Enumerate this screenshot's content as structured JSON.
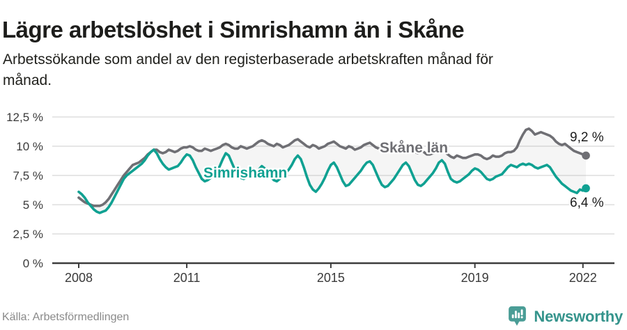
{
  "title": "Lägre arbetslöshet i Simrishamn än i Skåne",
  "subtitle": {
    "line1": "Arbetssökande som andel av den registerbaserade arbetskraften månad för",
    "line2": "månad."
  },
  "source": "Källa: Arbetsförmedlingen",
  "branding": {
    "name": "Newsworthy",
    "icon": "newsworthy-speech-bubble-chart-icon",
    "color": "#35948c"
  },
  "colors": {
    "title_text": "#1d1d1b",
    "axis_text": "#3a3a3a",
    "gridline": "#dedede",
    "zero_axis": "#3c3c3c",
    "skane_line": "#6f6f74",
    "simrishamn_line": "#10a192",
    "band_fill": "rgba(130,130,130,0.08)",
    "end_label_text": "#1d1d1d"
  },
  "chart_data": {
    "type": "line",
    "x_interval": "monthly",
    "x_start": "2008-01",
    "x_end": "2022-02",
    "x_tick_labels": [
      "2008",
      "2011",
      "2015",
      "2019",
      "2022"
    ],
    "x_tick_years": [
      2008,
      2011,
      2015,
      2019,
      2022
    ],
    "y_tick_labels": [
      "0 %",
      "2,5 %",
      "5 %",
      "7,5 %",
      "10 %",
      "12,5 %"
    ],
    "y_tick_values": [
      0,
      2.5,
      5,
      7.5,
      10,
      12.5
    ],
    "ylim": [
      0,
      12.5
    ],
    "grid": "horizontal",
    "band_between_series": true,
    "series": [
      {
        "name": "Skåne län",
        "end_label": "9,2 %",
        "end_value": 9.2,
        "values": [
          5.6,
          5.4,
          5.2,
          5.1,
          5.0,
          4.9,
          4.9,
          4.9,
          5.0,
          5.2,
          5.5,
          5.9,
          6.3,
          6.7,
          7.1,
          7.5,
          7.8,
          8.1,
          8.4,
          8.5,
          8.6,
          8.8,
          9.0,
          9.3,
          9.5,
          9.7,
          9.7,
          9.5,
          9.4,
          9.5,
          9.7,
          9.6,
          9.5,
          9.6,
          9.8,
          9.9,
          9.9,
          10.0,
          9.9,
          9.7,
          9.6,
          9.6,
          9.8,
          9.7,
          9.6,
          9.7,
          9.8,
          9.9,
          10.1,
          10.2,
          10.1,
          9.9,
          9.8,
          9.8,
          10.0,
          9.9,
          9.8,
          9.9,
          10.0,
          10.2,
          10.4,
          10.5,
          10.4,
          10.2,
          10.1,
          10.0,
          10.2,
          10.1,
          9.9,
          10.0,
          10.1,
          10.3,
          10.5,
          10.6,
          10.4,
          10.2,
          10.0,
          9.9,
          10.1,
          10.0,
          9.8,
          9.9,
          10.0,
          10.2,
          10.3,
          10.4,
          10.2,
          10.0,
          9.9,
          9.8,
          10.0,
          9.9,
          9.7,
          9.8,
          9.9,
          10.1,
          10.2,
          10.3,
          10.1,
          9.9,
          9.8,
          9.7,
          9.9,
          9.8,
          9.6,
          9.6,
          9.7,
          9.8,
          9.9,
          10.0,
          9.8,
          9.6,
          9.5,
          9.4,
          9.6,
          9.5,
          9.3,
          9.3,
          9.4,
          9.5,
          9.6,
          9.6,
          9.5,
          9.3,
          9.1,
          9.0,
          9.2,
          9.1,
          9.0,
          9.0,
          9.1,
          9.2,
          9.3,
          9.3,
          9.2,
          9.0,
          8.9,
          9.0,
          9.2,
          9.1,
          9.1,
          9.2,
          9.4,
          9.5,
          9.5,
          9.6,
          9.9,
          10.5,
          11.0,
          11.4,
          11.5,
          11.3,
          11.0,
          11.1,
          11.2,
          11.1,
          11.0,
          10.9,
          10.7,
          10.4,
          10.2,
          10.1,
          10.2,
          10.0,
          9.8,
          9.6,
          9.5,
          9.4,
          9.3,
          9.2
        ]
      },
      {
        "name": "Simrishamn",
        "end_label": "6,4 %",
        "end_value": 6.4,
        "values": [
          6.1,
          5.9,
          5.6,
          5.2,
          4.9,
          4.6,
          4.4,
          4.3,
          4.4,
          4.5,
          4.8,
          5.2,
          5.7,
          6.2,
          6.7,
          7.2,
          7.5,
          7.7,
          7.9,
          8.1,
          8.3,
          8.5,
          8.8,
          9.2,
          9.5,
          9.7,
          9.4,
          8.9,
          8.5,
          8.2,
          8.0,
          8.1,
          8.2,
          8.3,
          8.6,
          9.0,
          9.3,
          9.2,
          8.8,
          8.2,
          7.7,
          7.2,
          7.0,
          7.1,
          7.3,
          7.5,
          7.8,
          8.3,
          8.9,
          9.4,
          9.2,
          8.6,
          8.0,
          7.5,
          7.3,
          7.2,
          7.4,
          7.5,
          7.4,
          7.6,
          8.0,
          8.3,
          8.1,
          7.8,
          7.4,
          7.1,
          7.0,
          7.2,
          7.5,
          7.7,
          8.0,
          8.4,
          8.9,
          9.2,
          8.9,
          8.2,
          7.4,
          6.7,
          6.3,
          6.1,
          6.4,
          6.8,
          7.3,
          7.9,
          8.4,
          8.6,
          8.2,
          7.6,
          7.0,
          6.6,
          6.7,
          7.0,
          7.3,
          7.6,
          7.9,
          8.3,
          8.6,
          8.7,
          8.4,
          7.8,
          7.2,
          6.7,
          6.5,
          6.6,
          6.9,
          7.2,
          7.6,
          8.0,
          8.4,
          8.6,
          8.3,
          7.7,
          7.1,
          6.7,
          6.6,
          6.8,
          7.1,
          7.4,
          7.7,
          8.1,
          8.6,
          8.8,
          8.5,
          7.8,
          7.2,
          7.0,
          6.9,
          7.0,
          7.2,
          7.4,
          7.6,
          7.9,
          8.1,
          8.0,
          7.8,
          7.5,
          7.2,
          7.1,
          7.2,
          7.4,
          7.5,
          7.6,
          7.9,
          8.2,
          8.4,
          8.3,
          8.2,
          8.4,
          8.5,
          8.4,
          8.5,
          8.4,
          8.2,
          8.1,
          8.2,
          8.3,
          8.4,
          8.2,
          7.8,
          7.4,
          7.1,
          6.8,
          6.6,
          6.4,
          6.2,
          6.1,
          6.0,
          6.3,
          6.2,
          6.4
        ]
      }
    ]
  }
}
